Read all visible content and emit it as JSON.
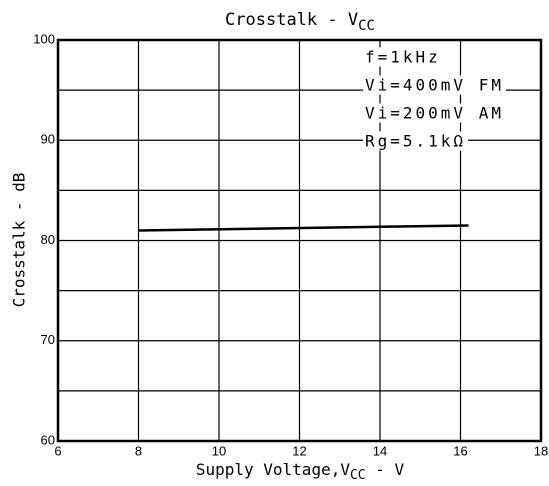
{
  "chart_data": {
    "type": "line",
    "title": "Crosstalk - V",
    "title_sub": "CC",
    "xlabel": "Supply Voltage,V",
    "xlabel_sub": "CC",
    "xlabel_suffix": " - V",
    "ylabel": "Crosstalk - dB",
    "annotations": [
      "f=1kHz",
      "Vi=400mV FM",
      "Vi=200mV AM",
      "Rg=5.1kΩ"
    ],
    "x": [
      8,
      16.2
    ],
    "series": [
      {
        "color": "#000000",
        "values": [
          81,
          81.5
        ]
      }
    ],
    "xlim": [
      6,
      18
    ],
    "xticks": [
      6,
      8,
      10,
      12,
      14,
      16,
      18
    ],
    "ylim": [
      60,
      100
    ],
    "yticks": [
      60,
      70,
      80,
      90,
      100
    ],
    "yminor": [
      65,
      75,
      85,
      95
    ],
    "grid": true
  }
}
